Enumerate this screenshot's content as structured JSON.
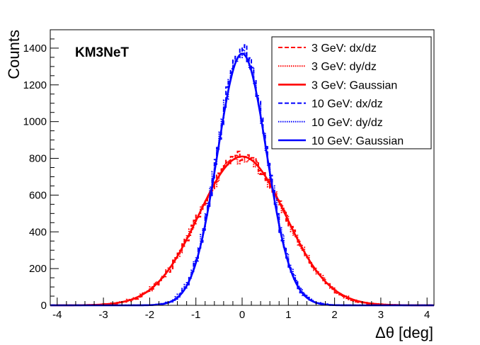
{
  "chart_data": {
    "type": "line",
    "annotation": "KM3NeT",
    "xlabel": "Δθ [deg]",
    "ylabel": "Counts",
    "xlim": [
      -4.15,
      4.15
    ],
    "ylim": [
      0,
      1500
    ],
    "xticks": [
      -4,
      -3,
      -2,
      -1,
      0,
      1,
      2,
      3,
      4
    ],
    "yticks": [
      0,
      200,
      400,
      600,
      800,
      1000,
      1200,
      1400
    ],
    "legend_position": "top-right",
    "series": [
      {
        "name": "3 GeV: dx/dz",
        "color": "#ff0000",
        "style": "dashed",
        "kind": "histogram",
        "mean": 0,
        "sigma": 0.93,
        "amplitude": 815,
        "jitter_seed": 3
      },
      {
        "name": "3 GeV: dy/dz",
        "color": "#ff0000",
        "style": "dotted",
        "kind": "histogram",
        "mean": 0,
        "sigma": 0.95,
        "amplitude": 800,
        "jitter_seed": 7
      },
      {
        "name": "3 GeV: Gaussian",
        "color": "#ff0000",
        "style": "solid",
        "kind": "gaussian",
        "mean": 0,
        "sigma": 0.94,
        "amplitude": 810
      },
      {
        "name": "10 GeV: dx/dz",
        "color": "#0000ff",
        "style": "dashed",
        "kind": "histogram",
        "mean": 0,
        "sigma": 0.53,
        "amplitude": 1395,
        "jitter_seed": 11
      },
      {
        "name": "10 GeV: dy/dz",
        "color": "#0000ff",
        "style": "dotted",
        "kind": "histogram",
        "mean": 0,
        "sigma": 0.54,
        "amplitude": 1380,
        "jitter_seed": 19
      },
      {
        "name": "10 GeV: Gaussian",
        "color": "#0000ff",
        "style": "solid",
        "kind": "gaussian",
        "mean": 0,
        "sigma": 0.53,
        "amplitude": 1370
      }
    ]
  }
}
